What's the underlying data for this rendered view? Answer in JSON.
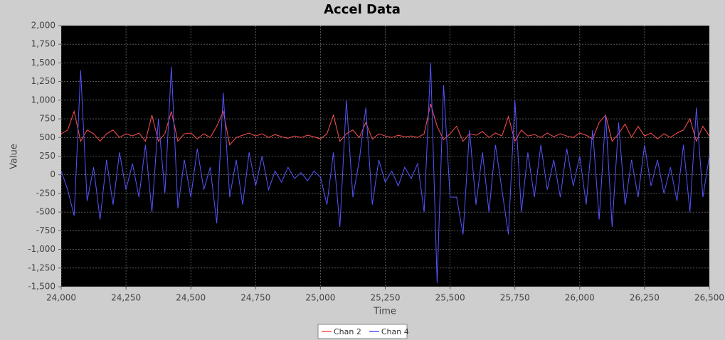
{
  "chart_data": {
    "type": "line",
    "title": "Accel Data",
    "x_label": "Time",
    "y_label": "Value",
    "x": [
      24000,
      24025,
      24050,
      24075,
      24100,
      24125,
      24150,
      24175,
      24200,
      24225,
      24250,
      24275,
      24300,
      24325,
      24350,
      24375,
      24400,
      24425,
      24450,
      24475,
      24500,
      24525,
      24550,
      24575,
      24600,
      24625,
      24650,
      24675,
      24700,
      24725,
      24750,
      24775,
      24800,
      24825,
      24850,
      24875,
      24900,
      24925,
      24950,
      24975,
      25000,
      25025,
      25050,
      25075,
      25100,
      25125,
      25150,
      25175,
      25200,
      25225,
      25250,
      25275,
      25300,
      25325,
      25350,
      25375,
      25400,
      25425,
      25450,
      25475,
      25500,
      25525,
      25550,
      25575,
      25600,
      25625,
      25650,
      25675,
      25700,
      25725,
      25750,
      25775,
      25800,
      25825,
      25850,
      25875,
      25900,
      25925,
      25950,
      25975,
      26000,
      26025,
      26050,
      26075,
      26100,
      26125,
      26150,
      26175,
      26200,
      26225,
      26250,
      26275,
      26300,
      26325,
      26350,
      26375,
      26400,
      26425,
      26450,
      26475,
      26500
    ],
    "series": [
      {
        "name": "Chan 2",
        "color": "#ff5050",
        "values": [
          550,
          600,
          850,
          450,
          600,
          550,
          450,
          550,
          600,
          500,
          550,
          520,
          560,
          450,
          800,
          450,
          550,
          850,
          450,
          550,
          560,
          480,
          550,
          500,
          650,
          850,
          400,
          500,
          530,
          560,
          520,
          550,
          500,
          540,
          510,
          490,
          520,
          500,
          530,
          510,
          480,
          550,
          800,
          450,
          550,
          600,
          500,
          700,
          480,
          550,
          520,
          500,
          530,
          510,
          520,
          500,
          550,
          950,
          650,
          470,
          550,
          650,
          450,
          550,
          530,
          580,
          500,
          560,
          520,
          780,
          450,
          600,
          520,
          540,
          500,
          560,
          510,
          550,
          520,
          500,
          560,
          530,
          480,
          700,
          800,
          450,
          550,
          680,
          500,
          650,
          520,
          560,
          480,
          550,
          500,
          560,
          600,
          750,
          450,
          650,
          520
        ]
      },
      {
        "name": "Chan 4",
        "color": "#5555ff",
        "values": [
          50,
          -200,
          -550,
          1400,
          -350,
          100,
          -600,
          200,
          -400,
          300,
          -200,
          150,
          -300,
          400,
          -500,
          750,
          -250,
          1450,
          -450,
          200,
          -300,
          350,
          -200,
          100,
          -650,
          1100,
          -300,
          200,
          -400,
          300,
          -150,
          250,
          -200,
          50,
          -100,
          100,
          -50,
          30,
          -80,
          50,
          -30,
          -400,
          300,
          -700,
          1000,
          -300,
          200,
          900,
          -400,
          200,
          -100,
          50,
          -150,
          100,
          -50,
          150,
          -500,
          1500,
          -1450,
          1200,
          -300,
          -300,
          -800,
          600,
          -400,
          300,
          -500,
          400,
          -200,
          -800,
          1000,
          -500,
          300,
          -300,
          400,
          -200,
          200,
          -300,
          350,
          -150,
          250,
          -400,
          600,
          -600,
          800,
          -700,
          700,
          -400,
          200,
          -300,
          400,
          -150,
          200,
          -250,
          100,
          -350,
          400,
          -500,
          900,
          -300,
          250
        ]
      }
    ],
    "xlim": [
      24000,
      26500
    ],
    "xticks": [
      {
        "value": 24000,
        "label": "24,000"
      },
      {
        "value": 24250,
        "label": "24,250"
      },
      {
        "value": 24500,
        "label": "24,500"
      },
      {
        "value": 24750,
        "label": "24,750"
      },
      {
        "value": 25000,
        "label": "25,000"
      },
      {
        "value": 25250,
        "label": "25,250"
      },
      {
        "value": 25500,
        "label": "25,500"
      },
      {
        "value": 25750,
        "label": "25,750"
      },
      {
        "value": 26000,
        "label": "26,000"
      },
      {
        "value": 26250,
        "label": "26,250"
      },
      {
        "value": 26500,
        "label": "26,500"
      }
    ],
    "ylim": [
      -1500,
      2000
    ],
    "yticks": [
      {
        "value": -1500,
        "label": "-1,500"
      },
      {
        "value": -1250,
        "label": "-1,250"
      },
      {
        "value": -1000,
        "label": "-1,000"
      },
      -750,
      -500,
      -250,
      0,
      250,
      500,
      750,
      {
        "value": 1000,
        "label": "1,000"
      },
      {
        "value": 1250,
        "label": "1,250"
      },
      {
        "value": 1500,
        "label": "1,500"
      },
      {
        "value": 1750,
        "label": "1,750"
      },
      {
        "value": 2000,
        "label": "2,000"
      }
    ],
    "grid": true,
    "legend": "bottom"
  }
}
